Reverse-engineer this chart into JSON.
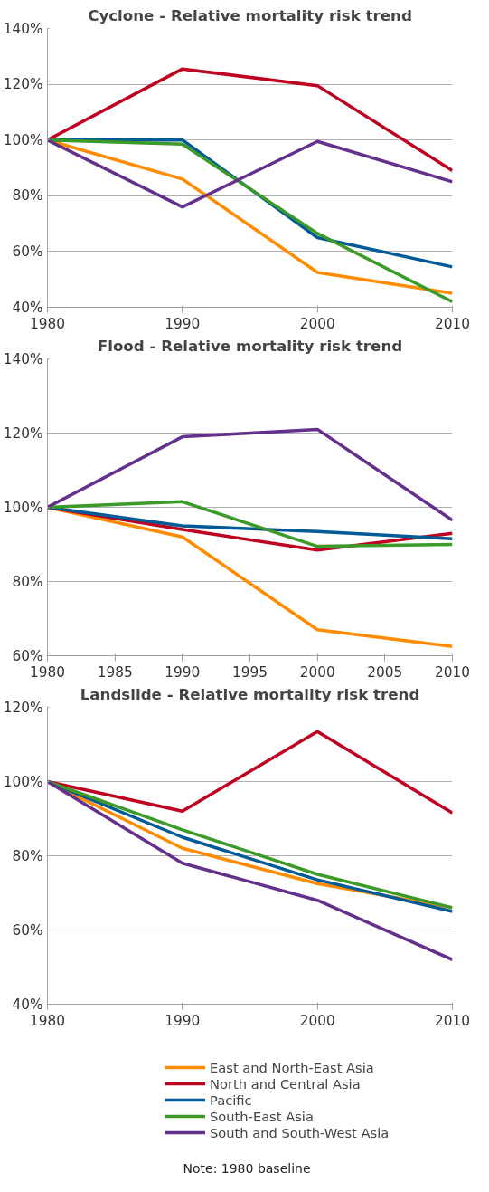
{
  "chart_data": [
    {
      "type": "line",
      "title": "Cyclone - Relative mortality risk trend",
      "x": [
        1980,
        1990,
        2000,
        2010
      ],
      "xlim": [
        1980,
        2010
      ],
      "xticks": [
        1980,
        1990,
        2000,
        2010
      ],
      "ylim": [
        40,
        140
      ],
      "yticks": [
        {
          "value": 40,
          "label": "40%"
        },
        {
          "value": 60,
          "label": "60%"
        },
        {
          "value": 80,
          "label": "80%"
        },
        {
          "value": 100,
          "label": "100%"
        },
        {
          "value": 120,
          "label": "120%"
        },
        {
          "value": 140,
          "label": "140%"
        }
      ],
      "grid": "y",
      "legend": false,
      "series": [
        {
          "color": "#ff8c00",
          "values": [
            100,
            86,
            52.5,
            45
          ]
        },
        {
          "color": "#c00020",
          "values": [
            100,
            125.5,
            119.5,
            89
          ]
        },
        {
          "color": "#005a96",
          "values": [
            100,
            100,
            65,
            54.5
          ]
        },
        {
          "color": "#3c9a28",
          "values": [
            100,
            98.5,
            66.5,
            42
          ]
        },
        {
          "color": "#64308c",
          "values": [
            100,
            76,
            99.5,
            85
          ]
        }
      ]
    },
    {
      "type": "line",
      "title": "Flood - Relative mortality risk trend",
      "x": [
        1980,
        1990,
        2000,
        2010
      ],
      "xlim": [
        1980,
        2010
      ],
      "xticks": [
        1980,
        1985,
        1990,
        1995,
        2000,
        2005,
        2010
      ],
      "ylim": [
        60,
        140
      ],
      "yticks": [
        {
          "value": 60,
          "label": "60%"
        },
        {
          "value": 80,
          "label": "80%"
        },
        {
          "value": 100,
          "label": "100%"
        },
        {
          "value": 120,
          "label": "120%"
        },
        {
          "value": 140,
          "label": "140%"
        }
      ],
      "grid": "y",
      "legend": false,
      "series": [
        {
          "color": "#ff8c00",
          "values": [
            100,
            92,
            67,
            62.5
          ]
        },
        {
          "color": "#c00020",
          "values": [
            100,
            94,
            88.5,
            93
          ]
        },
        {
          "color": "#005a96",
          "values": [
            100,
            95,
            93.5,
            91.5
          ]
        },
        {
          "color": "#3c9a28",
          "values": [
            100,
            101.5,
            89.5,
            90
          ]
        },
        {
          "color": "#64308c",
          "values": [
            100,
            119,
            121,
            96.5
          ]
        }
      ]
    },
    {
      "type": "line",
      "title": "Landslide - Relative mortality risk trend",
      "x": [
        1980,
        1990,
        2000,
        2010
      ],
      "xlim": [
        1980,
        2010
      ],
      "xticks": [
        1980,
        1990,
        2000,
        2010
      ],
      "ylim": [
        40,
        120
      ],
      "yticks": [
        {
          "value": 40,
          "label": "40%"
        },
        {
          "value": 60,
          "label": "60%"
        },
        {
          "value": 80,
          "label": "80%"
        },
        {
          "value": 100,
          "label": "100%"
        },
        {
          "value": 120,
          "label": "120%"
        }
      ],
      "grid": "y",
      "legend": "bottom",
      "annotations": [
        "Note: 1980 baseline"
      ],
      "series": [
        {
          "name": "East and North-East Asia",
          "color": "#ff8c00",
          "values": [
            100,
            82,
            72.5,
            66
          ]
        },
        {
          "name": "North and Central Asia",
          "color": "#c00020",
          "values": [
            100,
            92,
            113.5,
            91.5
          ]
        },
        {
          "name": "Pacific",
          "color": "#005a96",
          "values": [
            100,
            85,
            73.5,
            65
          ]
        },
        {
          "name": "South-East Asia",
          "color": "#3c9a28",
          "values": [
            100,
            87,
            75,
            66
          ]
        },
        {
          "name": "South and South-West Asia",
          "color": "#64308c",
          "values": [
            100,
            78,
            68,
            52
          ]
        }
      ]
    }
  ]
}
